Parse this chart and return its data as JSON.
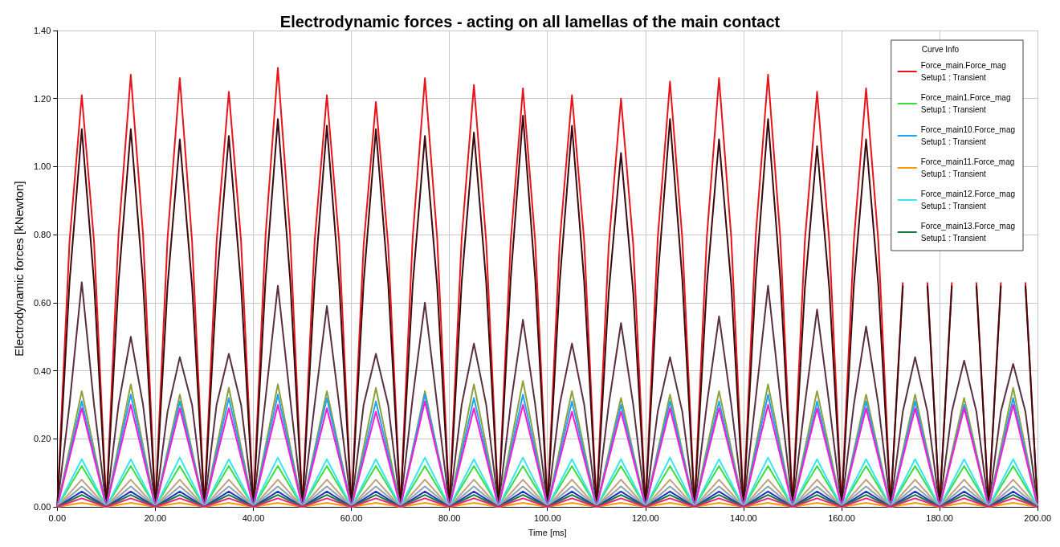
{
  "chart_data": {
    "type": "line",
    "title": "Electrodynamic forces - acting on all lamellas of the main contact",
    "xlabel": "Time [ms]",
    "ylabel": "Electrodynamic forces [kNewton]",
    "legend_title": "Curve Info",
    "legend": "top right",
    "grid": true,
    "marker": "none",
    "line_style": "solid",
    "xlim": [
      0,
      200
    ],
    "ylim": [
      0,
      1.4
    ],
    "xticks": [
      {
        "value": 0,
        "label": "0.00"
      },
      {
        "value": 20,
        "label": "20.00"
      },
      {
        "value": 40,
        "label": "40.00"
      },
      {
        "value": 60,
        "label": "60.00"
      },
      {
        "value": 80,
        "label": "80.00"
      },
      {
        "value": 100,
        "label": "100.00"
      },
      {
        "value": 120,
        "label": "120.00"
      },
      {
        "value": 140,
        "label": "140.00"
      },
      {
        "value": 160,
        "label": "160.00"
      },
      {
        "value": 180,
        "label": "180.00"
      },
      {
        "value": 200,
        "label": "200.00"
      }
    ],
    "yticks": [
      {
        "value": 0,
        "label": "0.00"
      },
      {
        "value": 0.2,
        "label": "0.20"
      },
      {
        "value": 0.4,
        "label": "0.40"
      },
      {
        "value": 0.6,
        "label": "0.60"
      },
      {
        "value": 0.8,
        "label": "0.80"
      },
      {
        "value": 1.0,
        "label": "1.00"
      },
      {
        "value": 1.2,
        "label": "1.20"
      },
      {
        "value": 1.4,
        "label": "1.40"
      }
    ],
    "x": [
      0,
      2.5,
      5,
      7.5,
      10,
      12.5,
      15,
      17.5,
      20,
      22.5,
      25,
      27.5,
      30,
      32.5,
      35,
      37.5,
      40,
      42.5,
      45,
      47.5,
      50,
      52.5,
      55,
      57.5,
      60,
      62.5,
      65,
      67.5,
      70,
      72.5,
      75,
      77.5,
      80,
      82.5,
      85,
      87.5,
      90,
      92.5,
      95,
      97.5,
      100,
      102.5,
      105,
      107.5,
      110,
      112.5,
      115,
      117.5,
      120,
      122.5,
      125,
      127.5,
      130,
      132.5,
      135,
      137.5,
      140,
      142.5,
      145,
      147.5,
      150,
      152.5,
      155,
      157.5,
      160,
      162.5,
      165,
      167.5,
      170,
      172.5,
      175,
      177.5,
      180,
      182.5,
      185,
      187.5,
      190,
      192.5,
      195,
      197.5,
      200
    ],
    "series": [
      {
        "color": "#5a2f3d",
        "values": [
          0,
          0.3,
          0.66,
          0.3,
          0,
          0.3,
          0.5,
          0.3,
          0,
          0.28,
          0.44,
          0.3,
          0,
          0.3,
          0.45,
          0.3,
          0,
          0.32,
          0.65,
          0.32,
          0,
          0.3,
          0.59,
          0.3,
          0,
          0.3,
          0.45,
          0.3,
          0,
          0.32,
          0.6,
          0.3,
          0,
          0.3,
          0.48,
          0.3,
          0,
          0.3,
          0.55,
          0.3,
          0,
          0.3,
          0.48,
          0.3,
          0,
          0.3,
          0.54,
          0.3,
          0,
          0.28,
          0.44,
          0.28,
          0,
          0.3,
          0.56,
          0.3,
          0,
          0.32,
          0.65,
          0.32,
          0,
          0.3,
          0.58,
          0.3,
          0,
          0.3,
          0.53,
          0.3,
          0,
          0.28,
          0.44,
          0.28,
          0,
          0.28,
          0.43,
          0.28,
          0,
          0.28,
          0.42,
          0.28,
          0
        ]
      },
      {
        "name": "Force_main.Force_mag\nSetup1 : Transient",
        "color": "#e8141a",
        "values": [
          0,
          0.78,
          1.21,
          0.78,
          0,
          0.8,
          1.27,
          0.8,
          0,
          0.79,
          1.26,
          0.78,
          0,
          0.78,
          1.22,
          0.78,
          0,
          0.8,
          1.29,
          0.8,
          0,
          0.78,
          1.21,
          0.78,
          0,
          0.77,
          1.19,
          0.77,
          0,
          0.79,
          1.26,
          0.79,
          0,
          0.79,
          1.24,
          0.78,
          0,
          0.78,
          1.23,
          0.78,
          0,
          0.78,
          1.21,
          0.78,
          0,
          0.77,
          1.2,
          0.77,
          0,
          0.79,
          1.25,
          0.79,
          0,
          0.79,
          1.26,
          0.79,
          0,
          0.8,
          1.27,
          0.79,
          0,
          0.78,
          1.22,
          0.78,
          0,
          0.78,
          1.23,
          0.78,
          0,
          0.66,
          null,
          0.66,
          0,
          0.66,
          null,
          0.66,
          0,
          0.66,
          null,
          0.66,
          0
        ]
      },
      {
        "color": "#3a0a0e",
        "values": [
          0,
          0.66,
          1.11,
          0.66,
          0,
          0.66,
          1.11,
          0.66,
          0,
          0.65,
          1.08,
          0.65,
          0,
          0.65,
          1.09,
          0.65,
          0,
          0.67,
          1.14,
          0.67,
          0,
          0.66,
          1.12,
          0.66,
          0,
          0.66,
          1.11,
          0.66,
          0,
          0.65,
          1.09,
          0.65,
          0,
          0.66,
          1.1,
          0.66,
          0,
          0.67,
          1.15,
          0.67,
          0,
          0.66,
          1.12,
          0.66,
          0,
          0.63,
          1.04,
          0.63,
          0,
          0.67,
          1.14,
          0.67,
          0,
          0.65,
          1.08,
          0.65,
          0,
          0.67,
          1.14,
          0.67,
          0,
          0.64,
          1.06,
          0.64,
          0,
          0.65,
          1.08,
          0.65,
          0,
          0.65,
          null,
          0.65,
          0,
          0.65,
          null,
          0.65,
          0,
          0.65,
          null,
          0.65,
          0
        ]
      },
      {
        "color": "#8ca03c",
        "x": [
          0,
          5,
          10,
          15,
          20,
          25,
          30,
          35,
          40,
          45,
          50,
          55,
          60,
          65,
          70,
          75,
          80,
          85,
          90,
          95,
          100,
          105,
          110,
          115,
          120,
          125,
          130,
          135,
          140,
          145,
          150,
          155,
          160,
          165,
          170,
          175,
          180,
          185,
          190,
          195,
          200
        ],
        "values": [
          0,
          0.34,
          0,
          0.36,
          0,
          0.33,
          0,
          0.35,
          0,
          0.36,
          0,
          0.34,
          0,
          0.35,
          0,
          0.34,
          0,
          0.36,
          0,
          0.37,
          0,
          0.34,
          0,
          0.32,
          0,
          0.33,
          0,
          0.34,
          0,
          0.36,
          0,
          0.34,
          0,
          0.33,
          0,
          0.33,
          0,
          0.32,
          0,
          0.35,
          0
        ]
      },
      {
        "name": "Force_main1.Force_mag\nSetup1 : Transient",
        "color": "#3cdc3c",
        "x": [
          0,
          5,
          10,
          15,
          20,
          25,
          30,
          35,
          40,
          45,
          50,
          55,
          60,
          65,
          70,
          75,
          80,
          85,
          90,
          95,
          100,
          105,
          110,
          115,
          120,
          125,
          130,
          135,
          140,
          145,
          150,
          155,
          160,
          165,
          170,
          175,
          180,
          185,
          190,
          195,
          200
        ],
        "values": [
          0,
          0.12,
          0,
          0.12,
          0,
          0.12,
          0,
          0.12,
          0,
          0.12,
          0,
          0.12,
          0,
          0.12,
          0,
          0.12,
          0,
          0.12,
          0,
          0.12,
          0,
          0.12,
          0,
          0.12,
          0,
          0.12,
          0,
          0.12,
          0,
          0.12,
          0,
          0.12,
          0,
          0.12,
          0,
          0.12,
          0,
          0.12,
          0,
          0.12,
          0
        ]
      },
      {
        "name": "Force_main10.Force_mag\nSetup1 : Transient",
        "color": "#1aa3ff",
        "x": [
          0,
          5,
          10,
          15,
          20,
          25,
          30,
          35,
          40,
          45,
          50,
          55,
          60,
          65,
          70,
          75,
          80,
          85,
          90,
          95,
          100,
          105,
          110,
          115,
          120,
          125,
          130,
          135,
          140,
          145,
          150,
          155,
          160,
          165,
          170,
          175,
          180,
          185,
          190,
          195,
          200
        ],
        "values": [
          0,
          0.31,
          0,
          0.33,
          0,
          0.31,
          0,
          0.32,
          0,
          0.33,
          0,
          0.32,
          0,
          0.31,
          0,
          0.33,
          0,
          0.32,
          0,
          0.33,
          0,
          0.31,
          0,
          0.3,
          0,
          0.31,
          0,
          0.31,
          0,
          0.33,
          0,
          0.31,
          0,
          0.31,
          0,
          0.31,
          0,
          0.3,
          0,
          0.32,
          0
        ]
      },
      {
        "color": "#ff1ad0",
        "x": [
          0,
          5,
          10,
          15,
          20,
          25,
          30,
          35,
          40,
          45,
          50,
          55,
          60,
          65,
          70,
          75,
          80,
          85,
          90,
          95,
          100,
          105,
          110,
          115,
          120,
          125,
          130,
          135,
          140,
          145,
          150,
          155,
          160,
          165,
          170,
          175,
          180,
          185,
          190,
          195,
          200
        ],
        "values": [
          0,
          0.29,
          0,
          0.3,
          0,
          0.29,
          0,
          0.29,
          0,
          0.3,
          0,
          0.29,
          0,
          0.28,
          0,
          0.31,
          0,
          0.29,
          0,
          0.3,
          0,
          0.28,
          0,
          0.28,
          0,
          0.29,
          0,
          0.29,
          0,
          0.3,
          0,
          0.29,
          0,
          0.29,
          0,
          0.29,
          0,
          0.29,
          0,
          0.3,
          0
        ]
      },
      {
        "name": "Force_main11.Force_mag\nSetup1 : Transient",
        "color": "#ff9900",
        "x": [
          0,
          5,
          10,
          15,
          20,
          25,
          30,
          35,
          40,
          45,
          50,
          55,
          60,
          65,
          70,
          75,
          80,
          85,
          90,
          95,
          100,
          105,
          110,
          115,
          120,
          125,
          130,
          135,
          140,
          145,
          150,
          155,
          160,
          165,
          170,
          175,
          180,
          185,
          190,
          195,
          200
        ],
        "values": [
          0,
          0.012,
          0,
          0.012,
          0,
          0.012,
          0,
          0.012,
          0,
          0.012,
          0,
          0.012,
          0,
          0.012,
          0,
          0.012,
          0,
          0.012,
          0,
          0.012,
          0,
          0.012,
          0,
          0.012,
          0,
          0.012,
          0,
          0.012,
          0,
          0.012,
          0,
          0.012,
          0,
          0.012,
          0,
          0.012,
          0,
          0.012,
          0,
          0.012,
          0
        ]
      },
      {
        "name": "Force_main12.Force_mag\nSetup1 : Transient",
        "color": "#33e6f2",
        "x": [
          0,
          5,
          10,
          15,
          20,
          25,
          30,
          35,
          40,
          45,
          50,
          55,
          60,
          65,
          70,
          75,
          80,
          85,
          90,
          95,
          100,
          105,
          110,
          115,
          120,
          125,
          130,
          135,
          140,
          145,
          150,
          155,
          160,
          165,
          170,
          175,
          180,
          185,
          190,
          195,
          200
        ],
        "values": [
          0,
          0.14,
          0,
          0.14,
          0,
          0.145,
          0,
          0.14,
          0,
          0.145,
          0,
          0.14,
          0,
          0.14,
          0,
          0.145,
          0,
          0.14,
          0,
          0.145,
          0,
          0.14,
          0,
          0.14,
          0,
          0.145,
          0,
          0.14,
          0,
          0.145,
          0,
          0.14,
          0,
          0.14,
          0,
          0.14,
          0,
          0.14,
          0,
          0.14,
          0
        ]
      },
      {
        "color": "#c0a080",
        "x": [
          0,
          5,
          10,
          15,
          20,
          25,
          30,
          35,
          40,
          45,
          50,
          55,
          60,
          65,
          70,
          75,
          80,
          85,
          90,
          95,
          100,
          105,
          110,
          115,
          120,
          125,
          130,
          135,
          140,
          145,
          150,
          155,
          160,
          165,
          170,
          175,
          180,
          185,
          190,
          195,
          200
        ],
        "values": [
          0,
          0.08,
          0,
          0.08,
          0,
          0.08,
          0,
          0.08,
          0,
          0.08,
          0,
          0.08,
          0,
          0.08,
          0,
          0.08,
          0,
          0.08,
          0,
          0.08,
          0,
          0.08,
          0,
          0.08,
          0,
          0.08,
          0,
          0.08,
          0,
          0.08,
          0,
          0.08,
          0,
          0.08,
          0,
          0.08,
          0,
          0.08,
          0,
          0.08,
          0
        ]
      },
      {
        "color": "#8aa0b0",
        "x": [
          0,
          5,
          10,
          15,
          20,
          25,
          30,
          35,
          40,
          45,
          50,
          55,
          60,
          65,
          70,
          75,
          80,
          85,
          90,
          95,
          100,
          105,
          110,
          115,
          120,
          125,
          130,
          135,
          140,
          145,
          150,
          155,
          160,
          165,
          170,
          175,
          180,
          185,
          190,
          195,
          200
        ],
        "values": [
          0,
          0.06,
          0,
          0.06,
          0,
          0.06,
          0,
          0.06,
          0,
          0.06,
          0,
          0.06,
          0,
          0.06,
          0,
          0.06,
          0,
          0.06,
          0,
          0.06,
          0,
          0.06,
          0,
          0.06,
          0,
          0.06,
          0,
          0.06,
          0,
          0.06,
          0,
          0.06,
          0,
          0.06,
          0,
          0.06,
          0,
          0.06,
          0,
          0.06,
          0
        ]
      },
      {
        "color": "#1f2fc0",
        "x": [
          0,
          5,
          10,
          15,
          20,
          25,
          30,
          35,
          40,
          45,
          50,
          55,
          60,
          65,
          70,
          75,
          80,
          85,
          90,
          95,
          100,
          105,
          110,
          115,
          120,
          125,
          130,
          135,
          140,
          145,
          150,
          155,
          160,
          165,
          170,
          175,
          180,
          185,
          190,
          195,
          200
        ],
        "values": [
          0,
          0.045,
          0,
          0.045,
          0,
          0.045,
          0,
          0.045,
          0,
          0.045,
          0,
          0.045,
          0,
          0.045,
          0,
          0.045,
          0,
          0.045,
          0,
          0.045,
          0,
          0.045,
          0,
          0.045,
          0,
          0.045,
          0,
          0.045,
          0,
          0.045,
          0,
          0.045,
          0,
          0.045,
          0,
          0.045,
          0,
          0.045,
          0,
          0.045,
          0
        ]
      },
      {
        "name": "Force_main13.Force_mag\nSetup1 : Transient",
        "color": "#127a3a",
        "x": [
          0,
          5,
          10,
          15,
          20,
          25,
          30,
          35,
          40,
          45,
          50,
          55,
          60,
          65,
          70,
          75,
          80,
          85,
          90,
          95,
          100,
          105,
          110,
          115,
          120,
          125,
          130,
          135,
          140,
          145,
          150,
          155,
          160,
          165,
          170,
          175,
          180,
          185,
          190,
          195,
          200
        ],
        "values": [
          0,
          0.035,
          0,
          0.035,
          0,
          0.035,
          0,
          0.035,
          0,
          0.035,
          0,
          0.035,
          0,
          0.035,
          0,
          0.035,
          0,
          0.035,
          0,
          0.035,
          0,
          0.035,
          0,
          0.035,
          0,
          0.035,
          0,
          0.035,
          0,
          0.035,
          0,
          0.035,
          0,
          0.035,
          0,
          0.035,
          0,
          0.035,
          0,
          0.035,
          0
        ]
      },
      {
        "color": "#e8207a",
        "x": [
          0,
          5,
          10,
          15,
          20,
          25,
          30,
          35,
          40,
          45,
          50,
          55,
          60,
          65,
          70,
          75,
          80,
          85,
          90,
          95,
          100,
          105,
          110,
          115,
          120,
          125,
          130,
          135,
          140,
          145,
          150,
          155,
          160,
          165,
          170,
          175,
          180,
          185,
          190,
          195,
          200
        ],
        "values": [
          0,
          0.025,
          0,
          0.025,
          0,
          0.025,
          0,
          0.025,
          0,
          0.025,
          0,
          0.025,
          0,
          0.025,
          0,
          0.025,
          0,
          0.025,
          0,
          0.025,
          0,
          0.025,
          0,
          0.025,
          0,
          0.025,
          0,
          0.025,
          0,
          0.025,
          0,
          0.025,
          0,
          0.025,
          0,
          0.025,
          0,
          0.025,
          0,
          0.025,
          0
        ]
      }
    ]
  }
}
